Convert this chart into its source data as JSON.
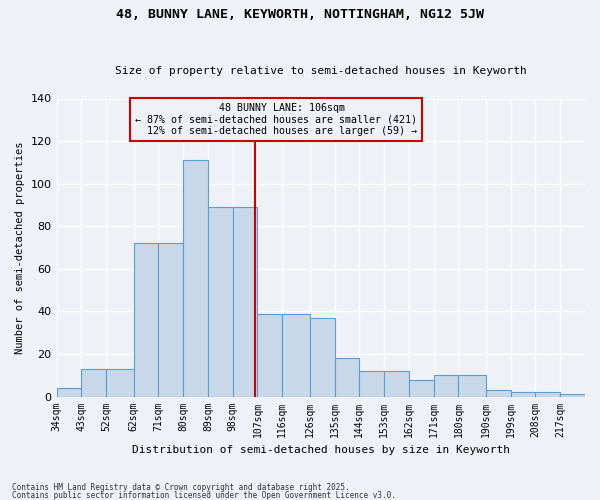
{
  "title1": "48, BUNNY LANE, KEYWORTH, NOTTINGHAM, NG12 5JW",
  "title2": "Size of property relative to semi-detached houses in Keyworth",
  "xlabel": "Distribution of semi-detached houses by size in Keyworth",
  "ylabel": "Number of semi-detached properties",
  "categories": [
    "34sqm",
    "43sqm",
    "52sqm",
    "62sqm",
    "71sqm",
    "80sqm",
    "89sqm",
    "98sqm",
    "107sqm",
    "116sqm",
    "126sqm",
    "135sqm",
    "144sqm",
    "153sqm",
    "162sqm",
    "171sqm",
    "180sqm",
    "190sqm",
    "199sqm",
    "208sqm",
    "217sqm"
  ],
  "values": [
    4,
    13,
    13,
    72,
    72,
    111,
    89,
    89,
    39,
    39,
    37,
    18,
    12,
    12,
    8,
    10,
    10,
    3,
    2,
    2,
    1
  ],
  "bar_color": "#c8d8e8",
  "bar_edge_color": "#5a9fd4",
  "vline_x": 106,
  "annotation_box_color": "#cc0000",
  "background_color": "#eef2f7",
  "ylim": [
    0,
    140
  ],
  "footer1": "Contains HM Land Registry data © Crown copyright and database right 2025.",
  "footer2": "Contains public sector information licensed under the Open Government Licence v3.0.",
  "pct_smaller": 87,
  "n_smaller": 421,
  "pct_larger": 12,
  "n_larger": 59
}
